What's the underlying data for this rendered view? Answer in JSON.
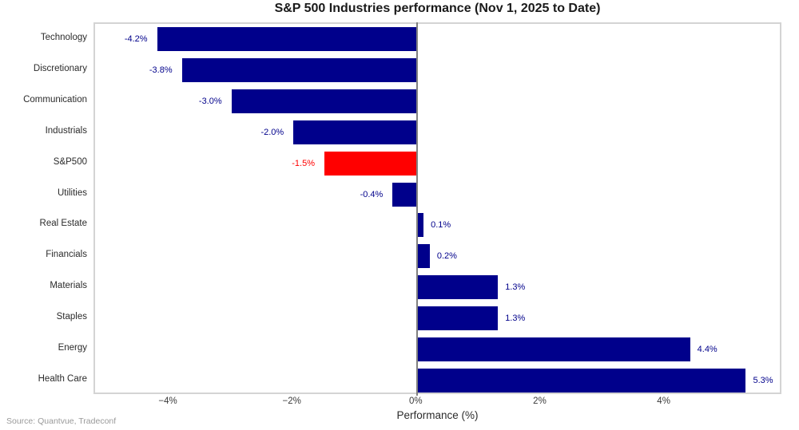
{
  "title": "S&P 500 Industries performance (Nov 1, 2025 to Date)",
  "source_note": "Source: Quantvue, Tradeconf",
  "colors": {
    "bar_default": "#00008B",
    "bar_highlight": "#FF0000",
    "label_default": "#00008B",
    "label_highlight": "#FF0000",
    "zero_line": "#808080",
    "frame": "#d4d4d4"
  },
  "chart_data": {
    "type": "bar",
    "orientation": "horizontal",
    "title": "S&P 500 Industries performance (Nov 1, 2025 to Date)",
    "xlabel": "Performance (%)",
    "ylabel": "",
    "categories": [
      "Technology",
      "Discretionary",
      "Communication",
      "Industrials",
      "S&P500",
      "Utilities",
      "Real Estate",
      "Financials",
      "Materials",
      "Staples",
      "Energy",
      "Health Care"
    ],
    "values": [
      -4.2,
      -3.8,
      -3.0,
      -2.0,
      -1.5,
      -0.4,
      0.1,
      0.2,
      1.3,
      1.3,
      4.4,
      5.3
    ],
    "value_labels": [
      "-4.2%",
      "-3.8%",
      "-3.0%",
      "-2.0%",
      "-1.5%",
      "-0.4%",
      "0.1%",
      "0.2%",
      "1.3%",
      "1.3%",
      "4.4%",
      "5.3%"
    ],
    "highlight_index": 4,
    "xlim": [
      -5.2,
      5.9
    ],
    "xticks": {
      "values": [
        -4,
        -2,
        0,
        2,
        4
      ],
      "labels": [
        "−4%",
        "−2%",
        "0%",
        "2%",
        "4%"
      ]
    },
    "grid": false,
    "legend": null
  }
}
